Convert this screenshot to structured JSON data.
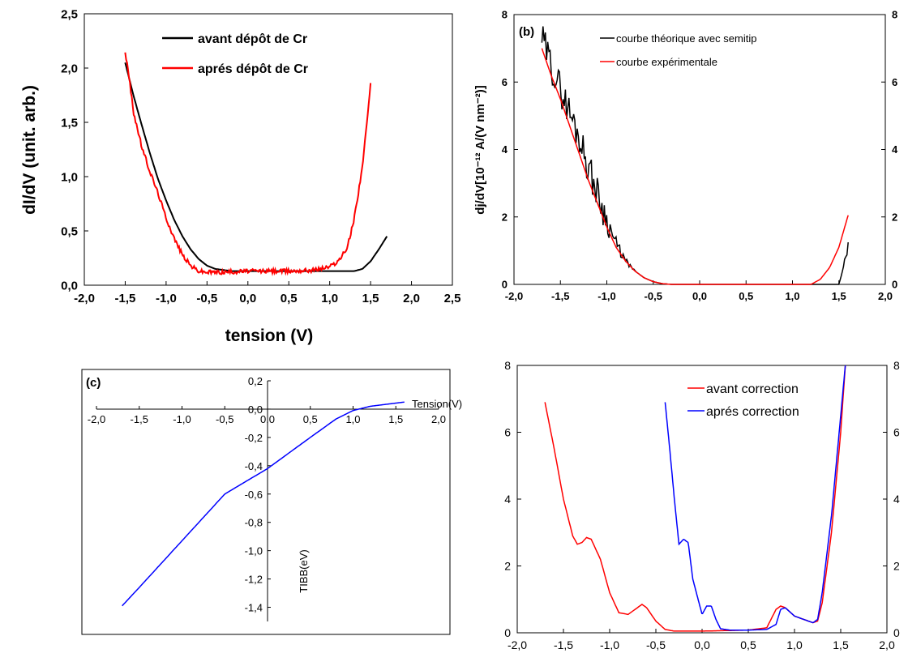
{
  "chart_data": [
    {
      "id": "a",
      "type": "line",
      "xlabel": "tension (V)",
      "ylabel": "dI/dV (unit. arb.)",
      "xlim": [
        -2.0,
        2.5
      ],
      "ylim": [
        0,
        2.5
      ],
      "xticks": [
        "-2,0",
        "-1,5",
        "-1,0",
        "-0,5",
        "0,0",
        "0,5",
        "1,0",
        "1,5",
        "2,0",
        "2,5"
      ],
      "yticks": [
        "0,0",
        "0,5",
        "1,0",
        "1,5",
        "2,0",
        "2,5"
      ],
      "legend_position": "top-center",
      "series": [
        {
          "name": "avant dépôt de Cr",
          "color": "#000000",
          "noise": 0.0,
          "x": [
            -1.5,
            -1.4,
            -1.3,
            -1.2,
            -1.1,
            -1.0,
            -0.9,
            -0.8,
            -0.7,
            -0.6,
            -0.5,
            -0.4,
            -0.3,
            -0.2,
            0.0,
            0.5,
            1.0,
            1.3,
            1.4,
            1.5,
            1.6,
            1.7
          ],
          "y": [
            2.05,
            1.75,
            1.48,
            1.22,
            0.98,
            0.78,
            0.6,
            0.45,
            0.33,
            0.24,
            0.18,
            0.15,
            0.14,
            0.13,
            0.13,
            0.13,
            0.13,
            0.13,
            0.15,
            0.22,
            0.33,
            0.45
          ]
        },
        {
          "name": "aprés dépôt de Cr",
          "color": "#ff0000",
          "noise": 0.02,
          "x": [
            -1.5,
            -1.45,
            -1.4,
            -1.3,
            -1.2,
            -1.1,
            -1.0,
            -0.9,
            -0.8,
            -0.7,
            -0.6,
            -0.5,
            -0.3,
            0.0,
            0.5,
            0.8,
            1.0,
            1.1,
            1.2,
            1.25,
            1.3,
            1.35,
            1.4,
            1.45,
            1.5
          ],
          "y": [
            2.15,
            1.9,
            1.6,
            1.28,
            1.05,
            0.85,
            0.62,
            0.43,
            0.28,
            0.18,
            0.13,
            0.12,
            0.12,
            0.13,
            0.13,
            0.14,
            0.17,
            0.22,
            0.32,
            0.45,
            0.62,
            0.85,
            1.1,
            1.45,
            1.85
          ]
        }
      ]
    },
    {
      "id": "b",
      "type": "line",
      "panel_label": "(b)",
      "ylabel": "dj/dV[10⁻¹² A/(V nm⁻²)]",
      "xlim": [
        -2.0,
        2.0
      ],
      "ylim": [
        0,
        8
      ],
      "xticks": [
        "-2,0",
        "-1,5",
        "-1,0",
        "-0,5",
        "0,0",
        "0,5",
        "1,0",
        "1,5",
        "2,0"
      ],
      "yticks": [
        "0",
        "2",
        "4",
        "6",
        "8"
      ],
      "yticks_right": [
        "0",
        "2",
        "4",
        "6",
        "8"
      ],
      "legend_position": "top-center",
      "series": [
        {
          "name": "courbe théorique avec semitip",
          "color": "#000000",
          "noise": 0.5,
          "x": [
            -1.7,
            -1.6,
            -1.5,
            -1.4,
            -1.3,
            -1.2,
            -1.1,
            -1.0,
            -0.9,
            -0.8,
            -0.7,
            -0.6,
            -0.5,
            -0.4,
            -0.3,
            0.0,
            0.5,
            1.0,
            1.5,
            1.55,
            1.6
          ],
          "y": [
            7.3,
            6.5,
            5.8,
            5.1,
            4.4,
            3.5,
            2.7,
            1.9,
            1.2,
            0.7,
            0.4,
            0.2,
            0.08,
            0.02,
            0.0,
            0.0,
            0.0,
            0.0,
            0.0,
            0.5,
            1.2
          ]
        },
        {
          "name": "courbe expérimentale",
          "color": "#ff0000",
          "noise": 0.0,
          "x": [
            -1.7,
            -1.6,
            -1.5,
            -1.4,
            -1.3,
            -1.2,
            -1.1,
            -1.0,
            -0.9,
            -0.8,
            -0.7,
            -0.6,
            -0.5,
            -0.4,
            -0.3,
            0.0,
            0.5,
            1.0,
            1.2,
            1.3,
            1.4,
            1.5,
            1.6
          ],
          "y": [
            7.0,
            6.2,
            5.5,
            4.7,
            3.9,
            3.1,
            2.4,
            1.7,
            1.1,
            0.7,
            0.4,
            0.2,
            0.08,
            0.02,
            0.0,
            0.0,
            0.0,
            0.0,
            0.0,
            0.15,
            0.5,
            1.1,
            2.05
          ]
        }
      ]
    },
    {
      "id": "c",
      "type": "line",
      "panel_label": "(c)",
      "xlabel": "Tension(V)",
      "ylabel": "TIBB(eV)",
      "xlim": [
        -2.0,
        2.0
      ],
      "ylim": [
        -1.5,
        0.2
      ],
      "xticks": [
        "-2,0",
        "-1,5",
        "-1,0",
        "-0,5",
        "0,0",
        "0,5",
        "1,0",
        "1,5",
        "2,0"
      ],
      "yticks": [
        "0,2",
        "0,0",
        "-0,2",
        "-0,4",
        "-0,6",
        "-0,8",
        "-1,0",
        "-1,2",
        "-1,4"
      ],
      "series": [
        {
          "name": "",
          "color": "#0000ff",
          "noise": 0.0,
          "x": [
            -1.7,
            -1.5,
            -1.0,
            -0.5,
            0.0,
            0.5,
            0.8,
            1.0,
            1.2,
            1.6
          ],
          "y": [
            -1.39,
            -1.26,
            -0.93,
            -0.6,
            -0.42,
            -0.2,
            -0.07,
            -0.01,
            0.02,
            0.05
          ]
        }
      ]
    },
    {
      "id": "d",
      "type": "line",
      "xlim": [
        -2.0,
        2.0
      ],
      "ylim": [
        0,
        8
      ],
      "xticks": [
        "-2,0",
        "-1,5",
        "-1,0",
        "-0,5",
        "0,0",
        "0,5",
        "1,0",
        "1,5",
        "2,0"
      ],
      "yticks": [
        "0",
        "2",
        "4",
        "6",
        "8"
      ],
      "yticks_right": [
        "0",
        "2",
        "4",
        "6",
        "8"
      ],
      "legend_position": "top-right",
      "series": [
        {
          "name": "avant correction",
          "color": "#ff0000",
          "noise": 0.0,
          "x": [
            -1.7,
            -1.6,
            -1.5,
            -1.4,
            -1.35,
            -1.3,
            -1.25,
            -1.2,
            -1.1,
            -1.0,
            -0.9,
            -0.8,
            -0.7,
            -0.65,
            -0.6,
            -0.5,
            -0.4,
            -0.3,
            0.0,
            0.5,
            0.7,
            0.8,
            0.85,
            0.9,
            1.0,
            1.1,
            1.2,
            1.25,
            1.3,
            1.4,
            1.5,
            1.55
          ],
          "y": [
            6.9,
            5.5,
            4.0,
            2.9,
            2.65,
            2.7,
            2.85,
            2.8,
            2.2,
            1.2,
            0.6,
            0.55,
            0.75,
            0.85,
            0.75,
            0.35,
            0.1,
            0.05,
            0.05,
            0.08,
            0.15,
            0.7,
            0.8,
            0.75,
            0.5,
            0.4,
            0.3,
            0.35,
            0.9,
            3.0,
            6.0,
            8.0
          ]
        },
        {
          "name": "aprés correction",
          "color": "#0000ff",
          "noise": 0.0,
          "x": [
            -0.4,
            -0.35,
            -0.3,
            -0.25,
            -0.2,
            -0.15,
            -0.1,
            0.0,
            0.05,
            0.1,
            0.15,
            0.2,
            0.3,
            0.5,
            0.7,
            0.8,
            0.85,
            0.9,
            1.0,
            1.1,
            1.2,
            1.25,
            1.3,
            1.4,
            1.5,
            1.55
          ],
          "y": [
            6.9,
            5.5,
            4.0,
            2.65,
            2.8,
            2.7,
            1.6,
            0.55,
            0.8,
            0.8,
            0.4,
            0.12,
            0.08,
            0.08,
            0.1,
            0.25,
            0.7,
            0.75,
            0.5,
            0.4,
            0.3,
            0.4,
            1.2,
            3.5,
            6.5,
            8.0
          ]
        }
      ]
    }
  ]
}
